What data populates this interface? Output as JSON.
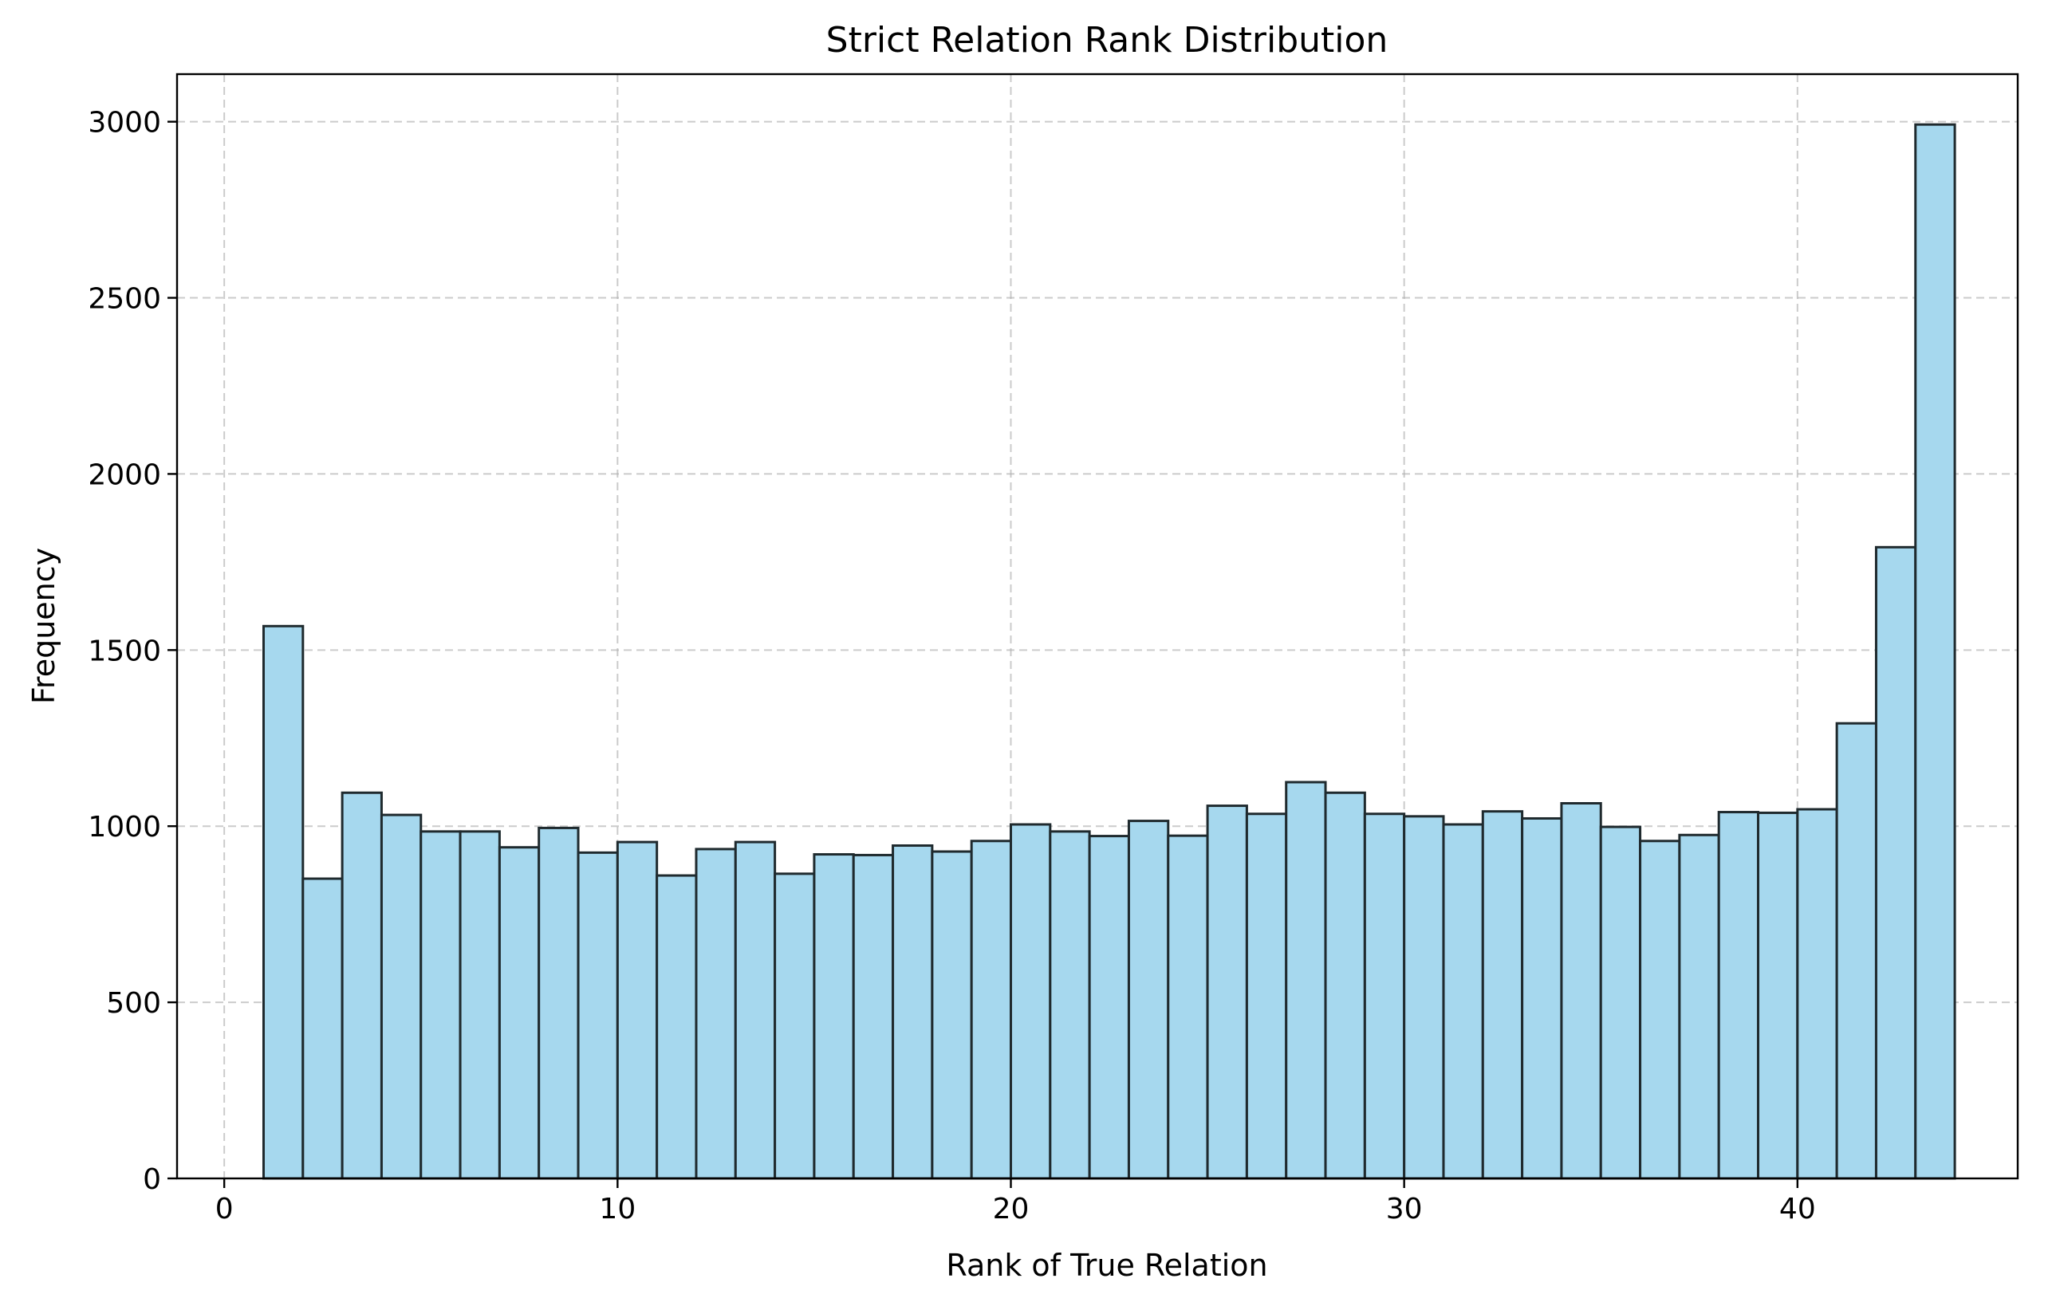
{
  "chart_data": {
    "type": "bar",
    "title": "Strict Relation Rank Distribution",
    "xlabel": "Rank of True Relation",
    "ylabel": "Frequency",
    "bar_color": "#a6d8ee",
    "edge_color": "#1f2a2e",
    "grid": true,
    "xlim": [
      -1.2,
      45.6
    ],
    "ylim": [
      0,
      3135
    ],
    "x_ticks": [
      0,
      10,
      20,
      30,
      40
    ],
    "y_ticks": [
      0,
      500,
      1000,
      1500,
      2000,
      2500,
      3000
    ],
    "bin_edges": [
      1,
      2,
      3,
      4,
      5,
      6,
      7,
      8,
      9,
      10,
      11,
      12,
      13,
      14,
      15,
      16,
      17,
      18,
      19,
      20,
      21,
      22,
      23,
      24,
      25,
      26,
      27,
      28,
      29,
      30,
      31,
      32,
      33,
      34,
      35,
      36,
      37,
      38,
      39,
      40,
      41,
      42,
      43,
      44
    ],
    "values": [
      1568,
      851,
      1095,
      1032,
      985,
      985,
      940,
      995,
      925,
      955,
      860,
      935,
      955,
      865,
      920,
      918,
      945,
      928,
      958,
      1005,
      985,
      972,
      1015,
      973,
      1058,
      1035,
      1125,
      1095,
      1035,
      1028,
      1005,
      1042,
      1022,
      1065,
      998,
      958,
      975,
      1040,
      1038,
      1048,
      1292,
      1792,
      2992
    ]
  }
}
